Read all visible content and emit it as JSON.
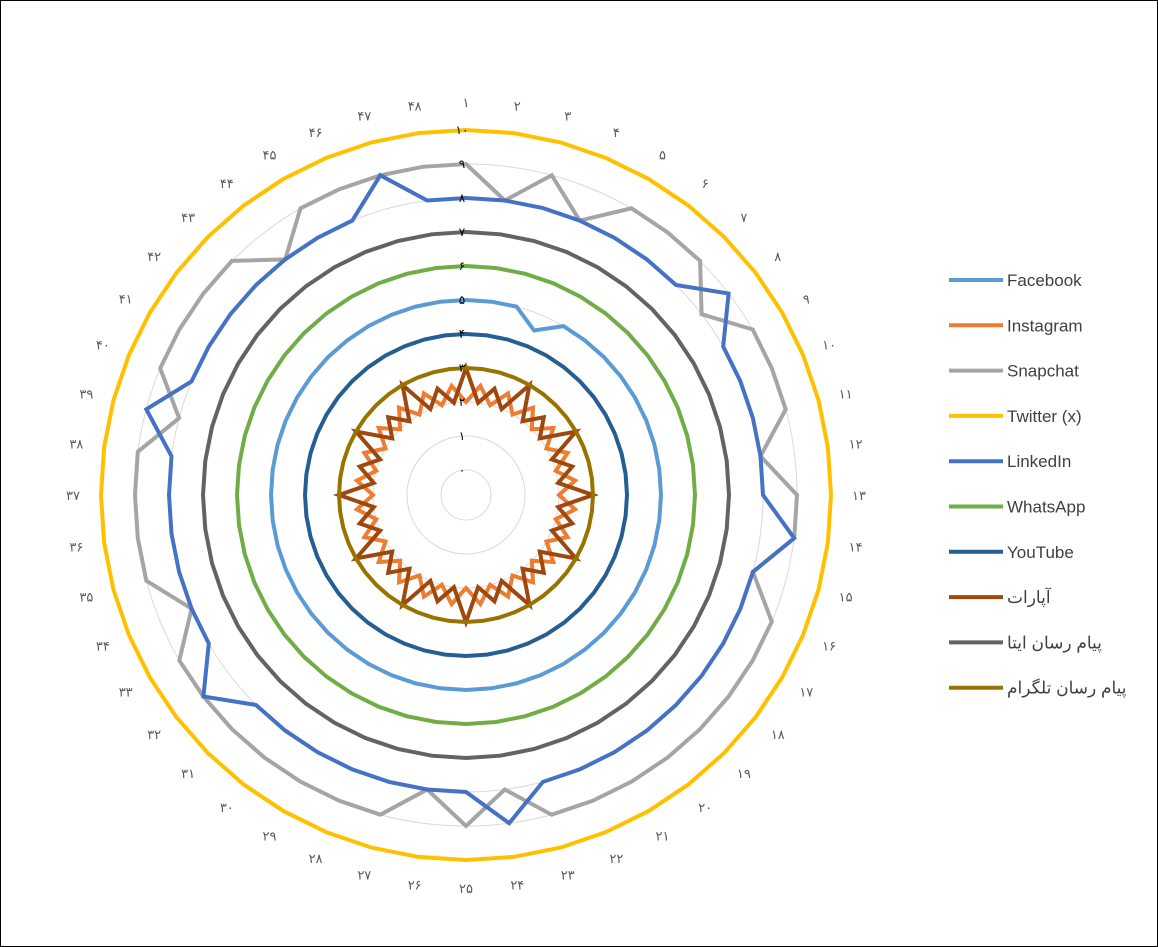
{
  "chart_data": {
    "type": "radar",
    "grid": true,
    "legend_position": "right",
    "ylim": [
      0,
      10
    ],
    "tick_labels": [
      "۰",
      "۱",
      "۲",
      "۳",
      "۴",
      "۵",
      "۶",
      "۷",
      "۸",
      "۹",
      "۱۰"
    ],
    "categories": [
      "۱",
      "۲",
      "۳",
      "۴",
      "۵",
      "۶",
      "۷",
      "۸",
      "۹",
      "۱۰",
      "۱۱",
      "۱۲",
      "۱۳",
      "۱۴",
      "۱۵",
      "۱۶",
      "۱۷",
      "۱۸",
      "۱۹",
      "۲۰",
      "۲۱",
      "۲۲",
      "۲۳",
      "۲۴",
      "۲۵",
      "۲۶",
      "۲۷",
      "۲۸",
      "۲۹",
      "۳۰",
      "۳۱",
      "۳۲",
      "۳۳",
      "۳۴",
      "۳۵",
      "۳۶",
      "۳۷",
      "۳۸",
      "۳۹",
      "۴۰",
      "۴۱",
      "۴۲",
      "۴۳",
      "۴۴",
      "۴۵",
      "۴۶",
      "۴۷",
      "۴۸"
    ],
    "series": [
      {
        "name": "Facebook",
        "color": "#5B9BD5",
        "values": [
          5,
          5,
          5,
          4.5,
          5,
          5,
          5,
          5,
          5,
          5,
          5,
          5,
          5,
          5,
          5,
          5,
          5,
          5,
          5,
          5,
          5,
          5,
          5,
          5,
          5,
          5,
          5,
          5,
          5,
          5,
          5,
          5,
          5,
          5,
          5,
          5,
          5,
          5,
          5,
          5,
          5,
          5,
          5,
          5,
          5,
          5,
          5,
          5
        ]
      },
      {
        "name": "Instagram",
        "color": "#ED7D31",
        "values": [
          2,
          2.5,
          2,
          2.5,
          2,
          2.5,
          2,
          2.5,
          2,
          2.5,
          2,
          2.5,
          2,
          2.5,
          2,
          2.5,
          2,
          2.5,
          2,
          2.5,
          2,
          2.5,
          2,
          2.5,
          2,
          2.5,
          2,
          2.5,
          2,
          2.5,
          2,
          2.5,
          2,
          2.5,
          2,
          2.5,
          2,
          2.5,
          2,
          2.5,
          2,
          2.5,
          2,
          2.5,
          2,
          2.5,
          2,
          2.5
        ]
      },
      {
        "name": "Snapchat",
        "color": "#A5A5A5",
        "values": [
          9,
          8,
          9,
          8,
          9,
          9,
          9,
          8,
          9,
          9,
          9,
          8,
          9,
          9,
          8,
          9,
          9,
          9,
          9,
          9,
          9,
          9,
          9,
          8,
          9,
          8,
          9,
          9,
          9,
          9,
          9,
          9,
          9,
          8,
          9,
          9,
          9,
          9,
          8,
          9,
          9,
          9,
          9,
          8,
          9,
          9,
          9,
          9
        ]
      },
      {
        "name": "Twitter (x)",
        "color": "#FFC000",
        "values": [
          10,
          10,
          10,
          10,
          10,
          10,
          10,
          10,
          10,
          10,
          10,
          10,
          10,
          10,
          10,
          10,
          10,
          10,
          10,
          10,
          10,
          10,
          10,
          10,
          10,
          10,
          10,
          10,
          10,
          10,
          10,
          10,
          10,
          10,
          10,
          10,
          10,
          10,
          10,
          10,
          10,
          10,
          10,
          10,
          10,
          10,
          10,
          10
        ]
      },
      {
        "name": "LinkedIn",
        "color": "#4472C4",
        "values": [
          8,
          8,
          8,
          8,
          8,
          8,
          8,
          9,
          8,
          8,
          8,
          8,
          8,
          9,
          8,
          8,
          8,
          8,
          8,
          8,
          8,
          8,
          8,
          9,
          8,
          8,
          8,
          8,
          8,
          8,
          8,
          9,
          8,
          8,
          8,
          8,
          8,
          8,
          9,
          8,
          8,
          8,
          8,
          8,
          8,
          8,
          9,
          8
        ]
      },
      {
        "name": "WhatsApp",
        "color": "#70AD47",
        "values": [
          6,
          6,
          6,
          6,
          6,
          6,
          6,
          6,
          6,
          6,
          6,
          6,
          6,
          6,
          6,
          6,
          6,
          6,
          6,
          6,
          6,
          6,
          6,
          6,
          6,
          6,
          6,
          6,
          6,
          6,
          6,
          6,
          6,
          6,
          6,
          6,
          6,
          6,
          6,
          6,
          6,
          6,
          6,
          6,
          6,
          6,
          6,
          6
        ]
      },
      {
        "name": "YouTube",
        "color": "#255E91",
        "values": [
          4,
          4,
          4,
          4,
          4,
          4,
          4,
          4,
          4,
          4,
          4,
          4,
          4,
          4,
          4,
          4,
          4,
          4,
          4,
          4,
          4,
          4,
          4,
          4,
          4,
          4,
          4,
          4,
          4,
          4,
          4,
          4,
          4,
          4,
          4,
          4,
          4,
          4,
          4,
          4,
          4,
          4,
          4,
          4,
          4,
          4,
          4,
          4
        ]
      },
      {
        "name": "آپارات",
        "color": "#9E480E",
        "values": [
          3,
          2,
          2.5,
          2,
          3,
          2,
          2.5,
          2,
          3,
          2,
          2.5,
          2,
          3,
          2,
          2.5,
          2,
          3,
          2,
          2.5,
          2,
          3,
          2,
          2.5,
          2,
          3,
          2,
          2.5,
          2,
          3,
          2,
          2.5,
          2,
          3,
          2,
          2.5,
          2,
          3,
          2,
          2.5,
          2,
          3,
          2,
          2.5,
          2,
          3,
          2,
          2.5,
          2
        ]
      },
      {
        "name": "پیام رسان ایتا",
        "color": "#636363",
        "values": [
          7,
          7,
          7,
          7,
          7,
          7,
          7,
          7,
          7,
          7,
          7,
          7,
          7,
          7,
          7,
          7,
          7,
          7,
          7,
          7,
          7,
          7,
          7,
          7,
          7,
          7,
          7,
          7,
          7,
          7,
          7,
          7,
          7,
          7,
          7,
          7,
          7,
          7,
          7,
          7,
          7,
          7,
          7,
          7,
          7,
          7,
          7,
          7
        ]
      },
      {
        "name": "پیام رسان تلگرام",
        "color": "#997300",
        "values": [
          3,
          3,
          3,
          3,
          3,
          3,
          3,
          3,
          3,
          3,
          3,
          3,
          3,
          3,
          3,
          3,
          3,
          3,
          3,
          3,
          3,
          3,
          3,
          3,
          3,
          3,
          3,
          3,
          3,
          3,
          3,
          3,
          3,
          3,
          3,
          3,
          3,
          3,
          3,
          3,
          3,
          3,
          3,
          3,
          3,
          3,
          3,
          3
        ]
      }
    ]
  }
}
